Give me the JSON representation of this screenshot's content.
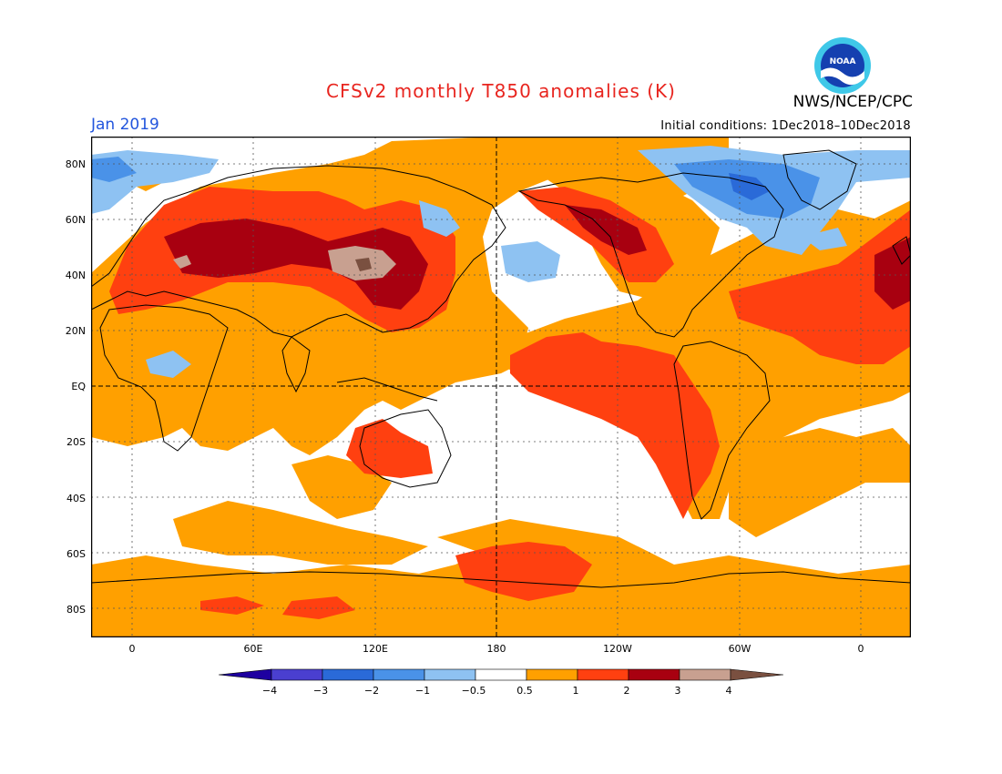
{
  "title": "CFSv2 monthly T850 anomalies (K)",
  "organization": "NWS/NCEP/CPC",
  "logo_text": "NOAA",
  "month": "Jan 2019",
  "initial_conditions": "Initial conditions: 1Dec2018–10Dec2018",
  "lat_labels": [
    "80N",
    "60N",
    "40N",
    "20N",
    "EQ",
    "20S",
    "40S",
    "60S",
    "80S"
  ],
  "lon_labels": [
    "0",
    "60E",
    "120E",
    "180",
    "120W",
    "60W",
    "0"
  ],
  "colorbar": {
    "labels": [
      "−4",
      "−3",
      "−2",
      "−1",
      "−0.5",
      "0.5",
      "1",
      "2",
      "3",
      "4"
    ],
    "colors": [
      "#1e00a0",
      "#4a3fd0",
      "#2a6ad8",
      "#4a92e8",
      "#8ec2f2",
      "#ffffff",
      "#ffa000",
      "#ff4010",
      "#a80010",
      "#c8a090",
      "#7a5040"
    ]
  },
  "colors": {
    "title": "#e8251f",
    "month": "#2255dd",
    "land_outline": "#000000"
  }
}
